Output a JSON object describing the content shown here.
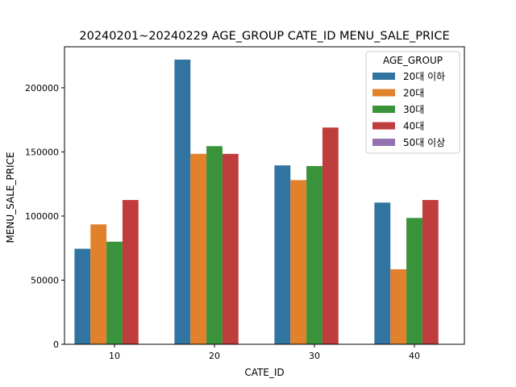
{
  "chart_data": {
    "type": "bar",
    "title": "20240201~20240229  AGE_GROUP  CATE_ID   MENU_SALE_PRICE",
    "xlabel": "CATE_ID",
    "ylabel": "MENU_SALE_PRICE",
    "ylim": [
      0,
      232000
    ],
    "yticks": [
      0,
      50000,
      100000,
      150000,
      200000
    ],
    "categories": [
      "10",
      "20",
      "30",
      "40"
    ],
    "grid": false,
    "legend": {
      "title": "AGE_GROUP",
      "placement": "top-right"
    },
    "series": [
      {
        "name": "20대 이하",
        "color": "#3274a1",
        "values": [
          74500,
          222000,
          139500,
          110500
        ]
      },
      {
        "name": "20대",
        "color": "#e1812c",
        "values": [
          93500,
          148500,
          128000,
          58500
        ]
      },
      {
        "name": "30대",
        "color": "#3a923a",
        "values": [
          80000,
          154500,
          139000,
          98500
        ]
      },
      {
        "name": "40대",
        "color": "#c03d3e",
        "values": [
          112500,
          148500,
          169000,
          112500
        ]
      },
      {
        "name": "50대 이상",
        "color": "#9372b2",
        "values": [
          0,
          0,
          0,
          0
        ]
      }
    ]
  }
}
